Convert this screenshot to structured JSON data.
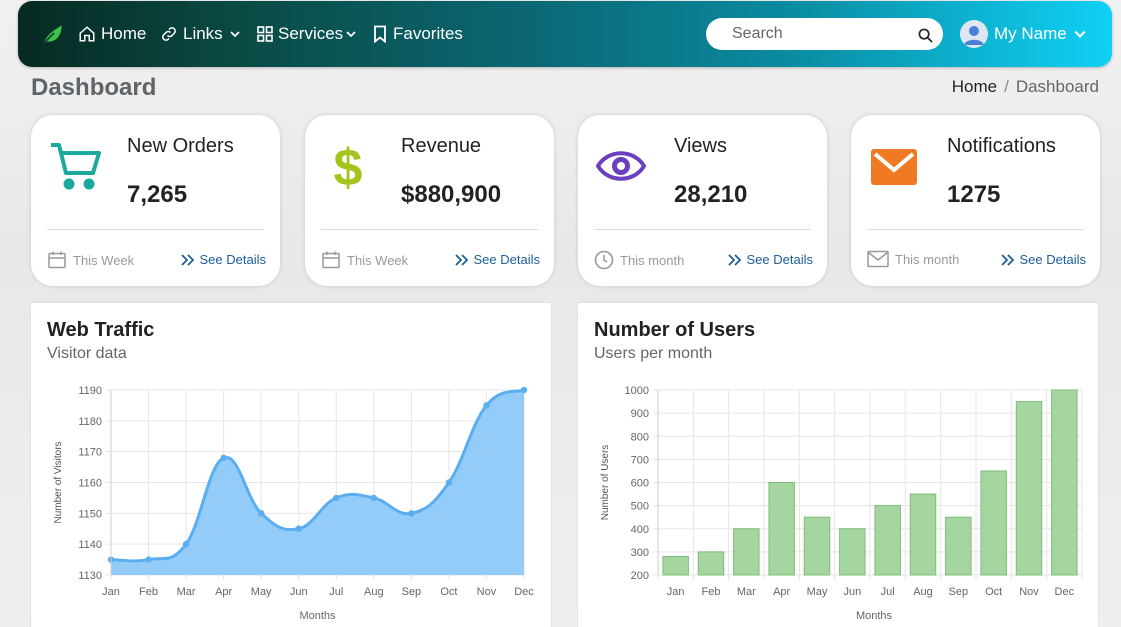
{
  "nav": {
    "home": "Home",
    "links": "Links",
    "services": "Services",
    "favorites": "Favorites",
    "search_placeholder": "Search",
    "user": "My Name",
    "accent": "#0fd0f5"
  },
  "page": {
    "title": "Dashboard",
    "breadcrumb": [
      "Home",
      "/",
      "Dashboard"
    ]
  },
  "cards": [
    {
      "title": "New Orders",
      "value": "7,265",
      "period": "This Week",
      "link": "See Details",
      "icon": "cart-icon",
      "color": "#1aa99a"
    },
    {
      "title": "Revenue",
      "value": "$880,900",
      "period": "This Week",
      "link": "See Details",
      "icon": "dollar-icon",
      "color": "#a3c41c"
    },
    {
      "title": "Views",
      "value": "28,210",
      "period": "This month",
      "link": "See Details",
      "icon": "eye-icon",
      "color": "#6a3fc0"
    },
    {
      "title": "Notifications",
      "value": "1275",
      "period": "This month",
      "link": "See Details",
      "icon": "envelope-icon",
      "color": "#f07a24"
    }
  ],
  "panels": {
    "traffic": {
      "title": "Web Traffic",
      "subtitle": "Visitor data"
    },
    "users": {
      "title": "Number of Users",
      "subtitle": "Users per month"
    }
  },
  "chart_data": [
    {
      "type": "area",
      "xlabel": "Months",
      "ylabel": "Number of Visitors",
      "categories": [
        "Jan",
        "Feb",
        "Mar",
        "Apr",
        "May",
        "Jun",
        "Jul",
        "Aug",
        "Sep",
        "Oct",
        "Nov",
        "Dec"
      ],
      "values": [
        1135,
        1135,
        1140,
        1168,
        1150,
        1145,
        1155,
        1155,
        1150,
        1160,
        1185,
        1190
      ],
      "ylim": [
        1130,
        1190
      ],
      "yticks": [
        1130,
        1140,
        1150,
        1160,
        1170,
        1180,
        1190
      ],
      "color": "#5aaef0",
      "grid": true
    },
    {
      "type": "bar",
      "xlabel": "Months",
      "ylabel": "Number of Users",
      "categories": [
        "Jan",
        "Feb",
        "Mar",
        "Apr",
        "May",
        "Jun",
        "Jul",
        "Aug",
        "Sep",
        "Oct",
        "Nov",
        "Dec"
      ],
      "values": [
        280,
        300,
        400,
        600,
        450,
        400,
        500,
        550,
        450,
        650,
        950,
        1000
      ],
      "ylim": [
        200,
        1000
      ],
      "yticks": [
        200,
        300,
        400,
        500,
        600,
        700,
        800,
        900,
        1000
      ],
      "color": "#a5d6a0",
      "grid": true
    }
  ]
}
